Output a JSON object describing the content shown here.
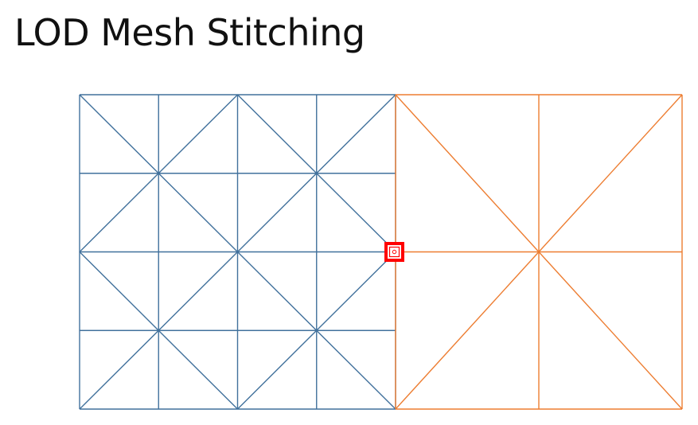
{
  "slide": {
    "title": "LOD Mesh Stitching"
  },
  "diagram": {
    "high_detail_mesh": {
      "color": "#41719c",
      "subdivisions": 4
    },
    "low_detail_mesh": {
      "color": "#ed7d31",
      "subdivisions": 2
    },
    "seam_marker": {
      "color": "#ff0000"
    }
  }
}
